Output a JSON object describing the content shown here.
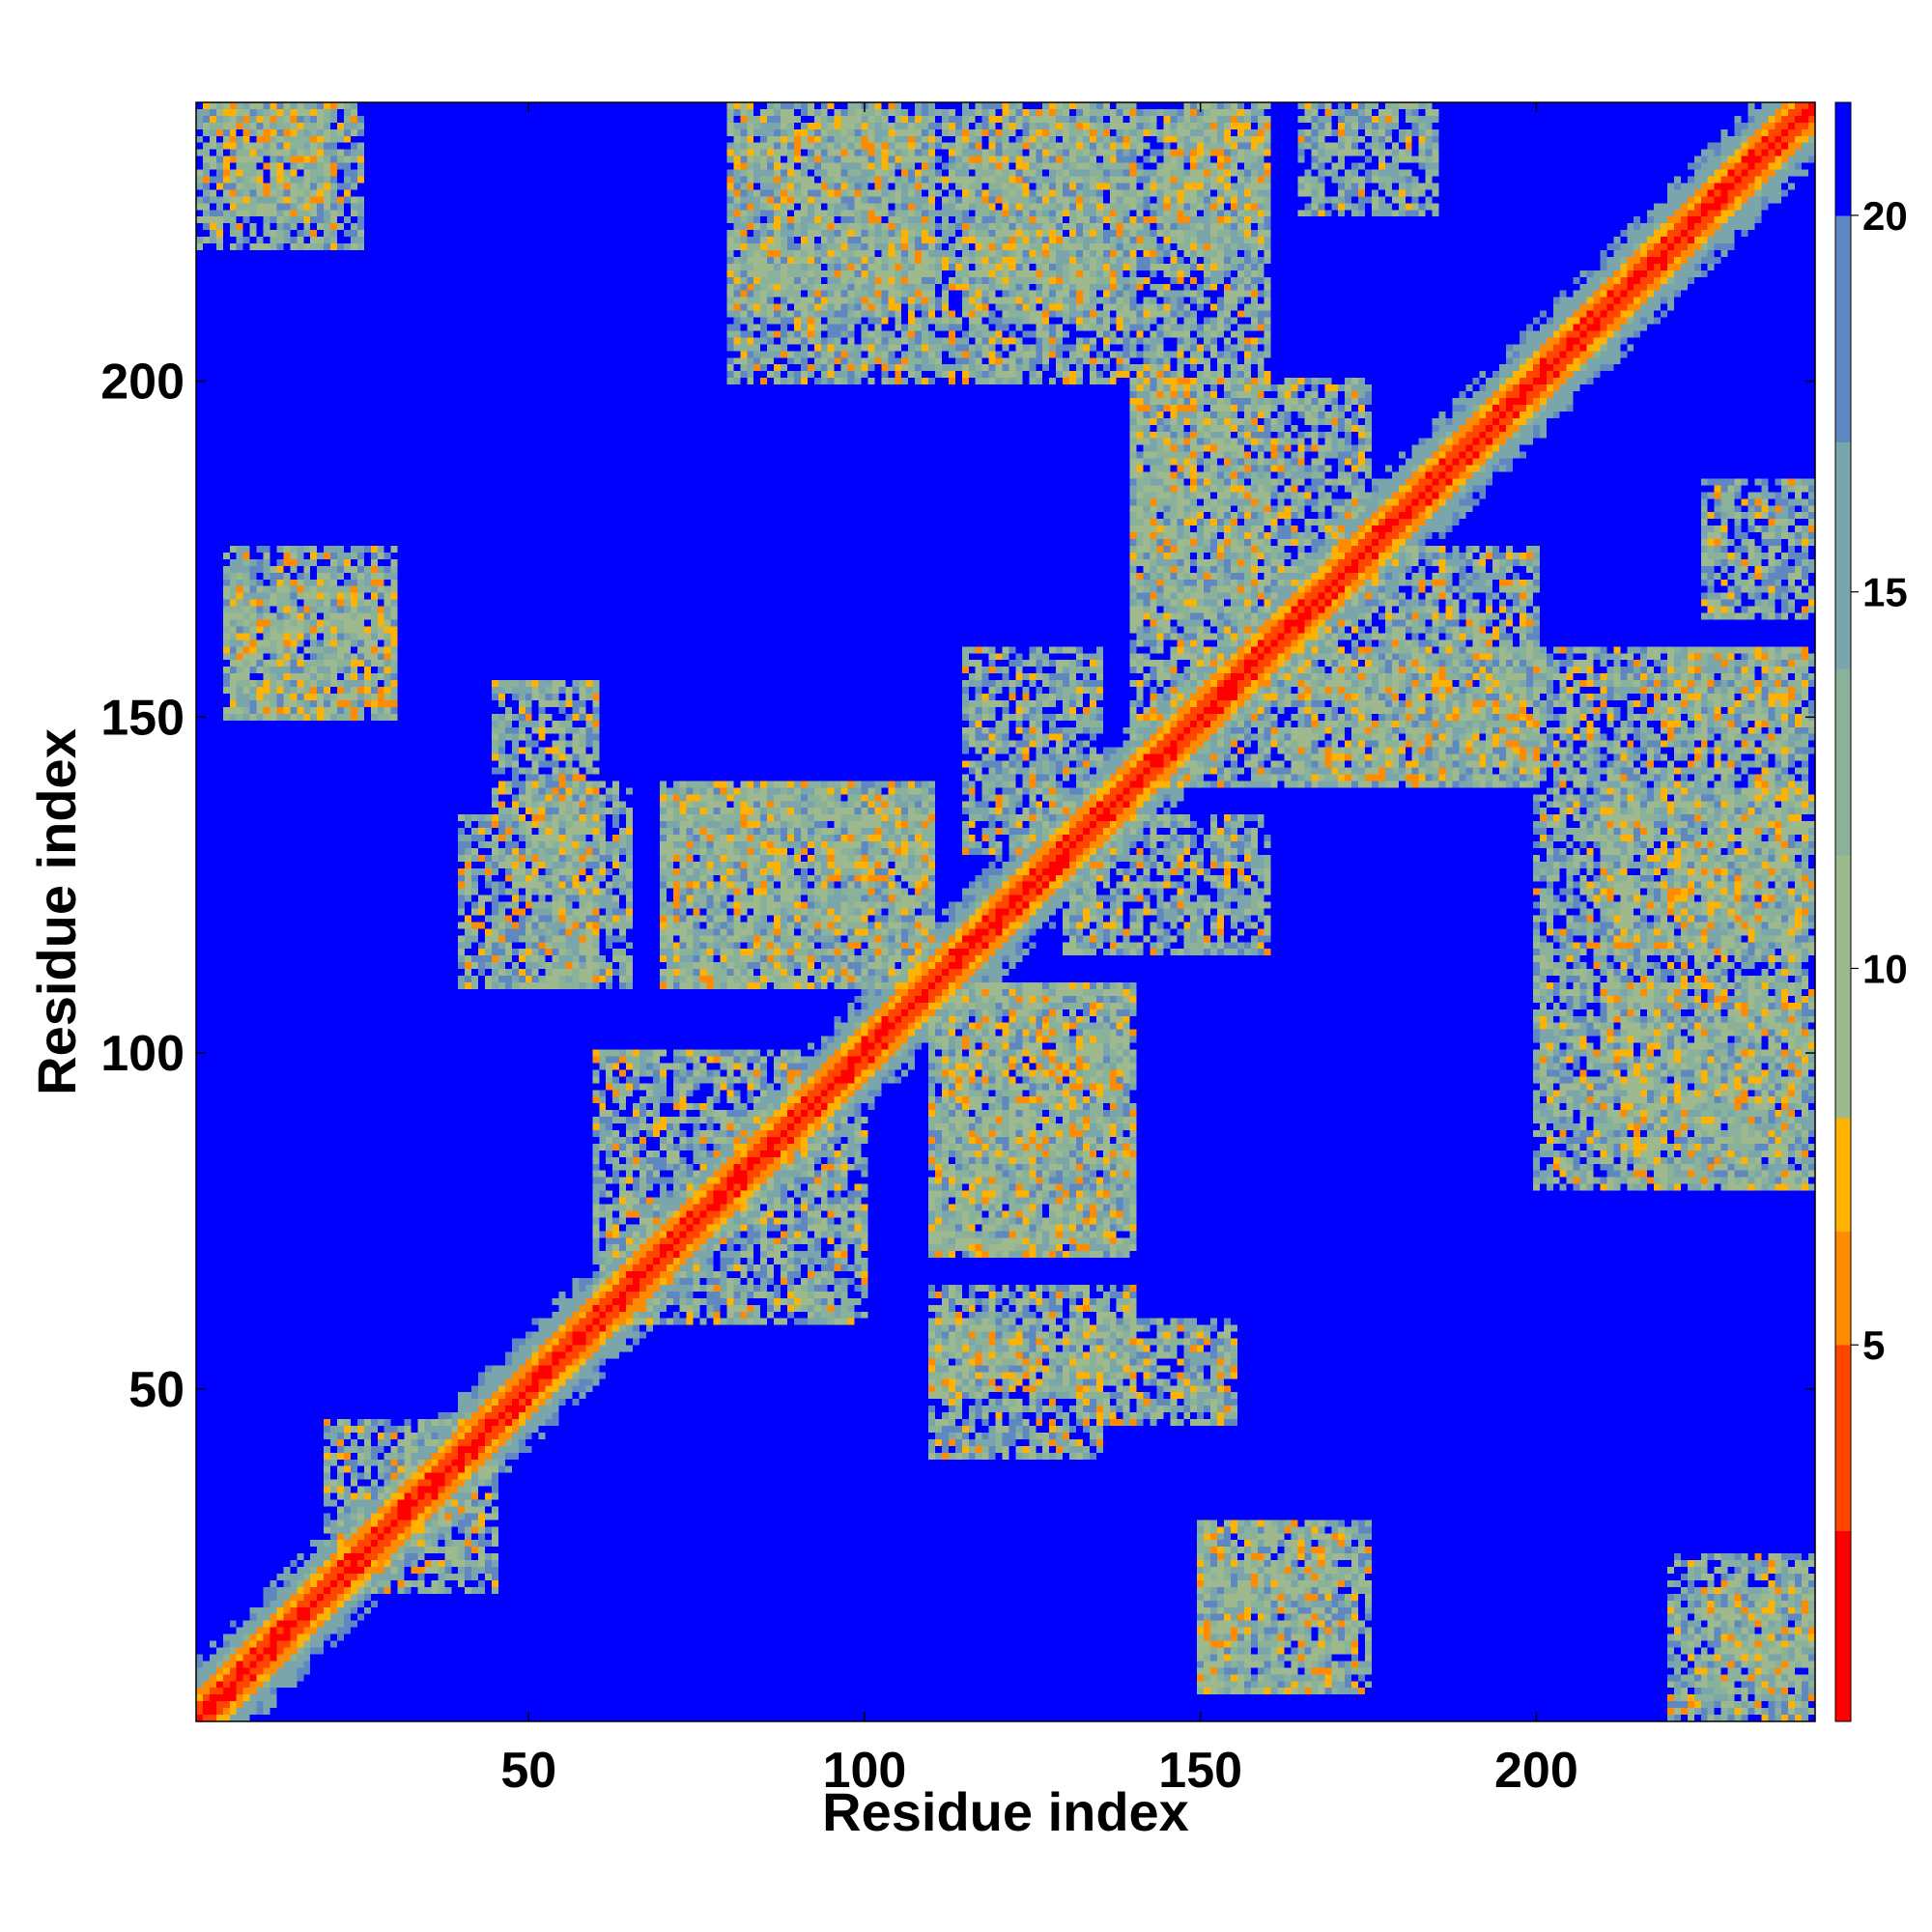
{
  "chart_data": {
    "type": "heatmap",
    "title": "",
    "xlabel": "Residue index",
    "ylabel": "Residue index",
    "n_residues": 241,
    "xlim": [
      1,
      241
    ],
    "ylim": [
      1,
      241
    ],
    "xticks": [
      50,
      100,
      150,
      200
    ],
    "yticks": [
      50,
      100,
      150,
      200
    ],
    "xtick_labels": [
      "50",
      "100",
      "150",
      "200"
    ],
    "ytick_labels": [
      "50",
      "100",
      "150",
      "200"
    ],
    "value_range": [
      0,
      21.5
    ],
    "colorbar": {
      "ticks": [
        5,
        10,
        15,
        20
      ],
      "tick_labels": [
        "5",
        "10",
        "15",
        "20"
      ],
      "colors": [
        "#ff0000",
        "#ff4500",
        "#ff8c00",
        "#ffb300",
        "#9fb98f",
        "#8ab19a",
        "#7aa5ab",
        "#5f88c0",
        "#0000ff"
      ],
      "color_bounds": [
        0,
        2.5,
        5.0,
        6.5,
        8.0,
        11.5,
        14.0,
        17.0,
        20.0,
        21.5
      ]
    },
    "contact_regions": [
      {
        "x": [
          5,
          20
        ],
        "y": [
          225,
          241
        ]
      },
      {
        "x": [
          5,
          30
        ],
        "y": [
          150,
          170
        ]
      },
      {
        "x": [
          80,
          110
        ],
        "y": [
          210,
          241
        ]
      },
      {
        "x": [
          115,
          140
        ],
        "y": [
          210,
          241
        ]
      },
      {
        "x": [
          145,
          160
        ],
        "y": [
          220,
          241
        ]
      },
      {
        "x": [
          165,
          185
        ],
        "y": [
          225,
          241
        ]
      },
      {
        "x": [
          50,
          65
        ],
        "y": [
          110,
          140
        ]
      },
      {
        "x": [
          70,
          110
        ],
        "y": [
          110,
          140
        ]
      },
      {
        "x": [
          115,
          135
        ],
        "y": [
          130,
          160
        ]
      },
      {
        "x": [
          140,
          160
        ],
        "y": [
          140,
          200
        ]
      },
      {
        "x": [
          165,
          200
        ],
        "y": [
          140,
          175
        ]
      },
      {
        "x": [
          200,
          240
        ],
        "y": [
          80,
          160
        ]
      },
      {
        "x": [
          110,
          140
        ],
        "y": [
          70,
          110
        ]
      },
      {
        "x": [
          60,
          90
        ],
        "y": [
          60,
          100
        ]
      },
      {
        "x": [
          110,
          135
        ],
        "y": [
          40,
          60
        ]
      },
      {
        "x": [
          135,
          155
        ],
        "y": [
          45,
          60
        ]
      },
      {
        "x": [
          20,
          45
        ],
        "y": [
          20,
          45
        ]
      },
      {
        "x": [
          150,
          175
        ],
        "y": [
          5,
          30
        ]
      },
      {
        "x": [
          220,
          241
        ],
        "y": [
          1,
          25
        ]
      }
    ]
  }
}
